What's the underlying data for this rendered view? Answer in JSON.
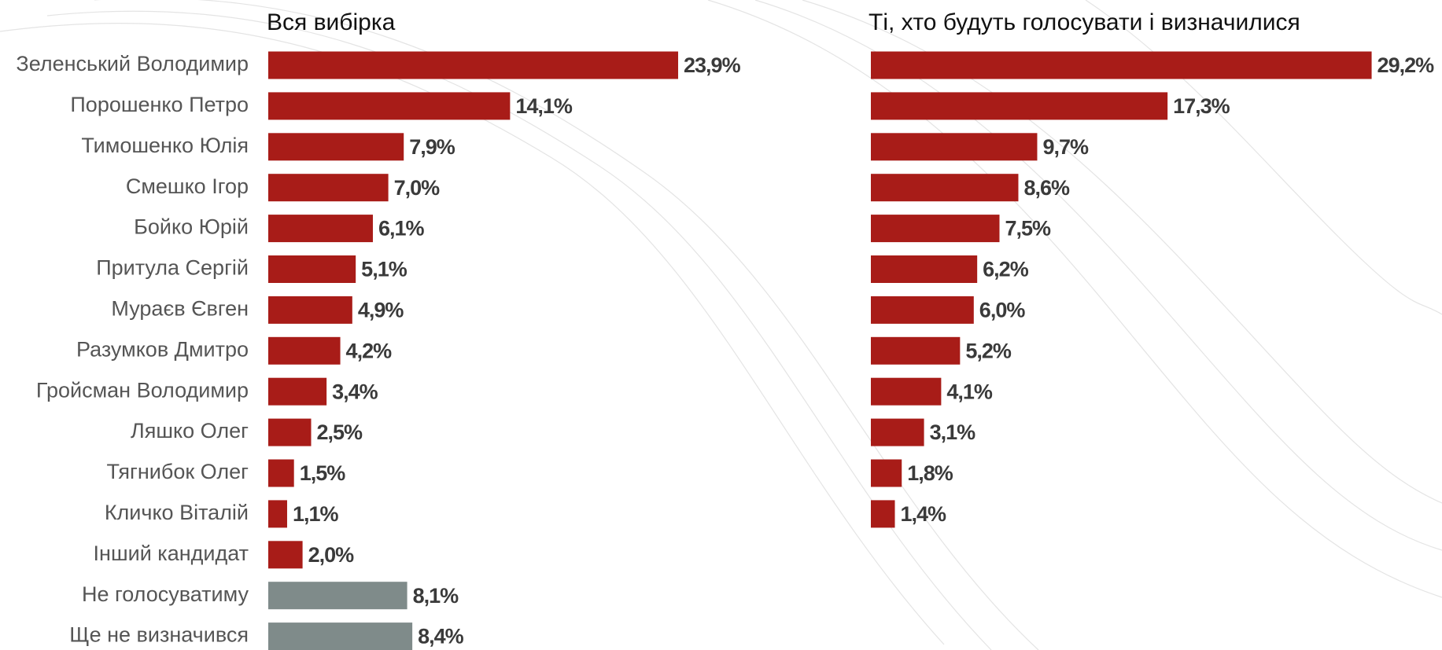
{
  "chart_data": [
    {
      "type": "bar",
      "orientation": "horizontal",
      "title": "Вся вибірка",
      "categories": [
        "Зеленський Володимир",
        "Порошенко Петро",
        "Тимошенко Юлія",
        "Смешко Ігор",
        "Бойко Юрій",
        "Притула Сергій",
        "Мураєв Євген",
        "Разумков Дмитро",
        "Гройсман Володимир",
        "Ляшко Олег",
        "Тягнибок Олег",
        "Кличко Віталій",
        "Інший кандидат",
        "Не голосуватиму",
        "Ще не визначився"
      ],
      "values": [
        23.9,
        14.1,
        7.9,
        7.0,
        6.1,
        5.1,
        4.9,
        4.2,
        3.4,
        2.5,
        1.5,
        1.1,
        2.0,
        8.1,
        8.4
      ],
      "value_labels": [
        "23,9%",
        "14,1%",
        "7,9%",
        "7,0%",
        "6,1%",
        "5,1%",
        "4,9%",
        "4,2%",
        "3,4%",
        "2,5%",
        "1,5%",
        "1,1%",
        "2,0%",
        "8,1%",
        "8,4%"
      ],
      "colors": [
        "#a81c18",
        "#a81c18",
        "#a81c18",
        "#a81c18",
        "#a81c18",
        "#a81c18",
        "#a81c18",
        "#a81c18",
        "#a81c18",
        "#a81c18",
        "#a81c18",
        "#a81c18",
        "#a81c18",
        "#7f8b8a",
        "#7f8b8a"
      ],
      "xlim": [
        0,
        30
      ]
    },
    {
      "type": "bar",
      "orientation": "horizontal",
      "title": "Ті, хто будуть голосувати і визначилися",
      "values": [
        29.2,
        17.3,
        9.7,
        8.6,
        7.5,
        6.2,
        6.0,
        5.2,
        4.1,
        3.1,
        1.8,
        1.4
      ],
      "value_labels": [
        "29,2%",
        "17,3%",
        "9,7%",
        "8,6%",
        "7,5%",
        "6,2%",
        "6,0%",
        "5,2%",
        "4,1%",
        "3,1%",
        "1,8%",
        "1,4%"
      ],
      "color": "#a81c18",
      "xlim": [
        0,
        30
      ]
    }
  ]
}
